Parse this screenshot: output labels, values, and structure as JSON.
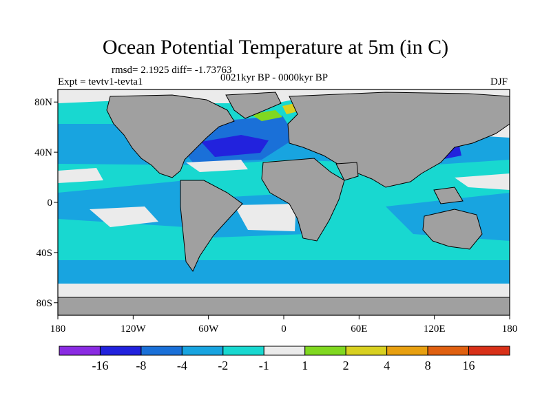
{
  "title": "Ocean Potential Temperature at 5m (in C)",
  "stats": "rmsd= 2.1925 diff= -1.73763",
  "expt": "Expt = tevtv1-tevta1",
  "period": "0021kyr BP - 0000kyr BP",
  "season": "DJF",
  "lat_ticks": [
    "80N",
    "40N",
    "0",
    "40S",
    "80S"
  ],
  "lon_ticks": [
    "180",
    "120W",
    "60W",
    "0",
    "60E",
    "120E",
    "180"
  ],
  "colorbar": {
    "colors": [
      "#8a2be2",
      "#2222dd",
      "#1a70d8",
      "#18a4e0",
      "#18d8d0",
      "#ebebeb",
      "#80d820",
      "#d8d020",
      "#e8a010",
      "#e06010",
      "#d83018"
    ],
    "labels": [
      "-16",
      "-8",
      "-4",
      "-2",
      "-1",
      "1",
      "2",
      "4",
      "8",
      "16"
    ]
  },
  "chart_data": {
    "type": "heatmap",
    "title": "Ocean Potential Temperature at 5m (in C)",
    "variable": "Ocean Potential Temperature at 5m",
    "units": "C",
    "experiment": "tevtv1-tevta1",
    "period": "0021kyr BP - 0000kyr BP",
    "season": "DJF",
    "rmsd": 2.1925,
    "diff": -1.73763,
    "x_range": [
      -180,
      180
    ],
    "y_range": [
      -90,
      90
    ],
    "contour_levels": [
      -16,
      -8,
      -4,
      -2,
      -1,
      1,
      2,
      4,
      8,
      16
    ],
    "regions": [
      {
        "name": "global-ocean-background",
        "value_class": "-2 to -1"
      },
      {
        "name": "north-atlantic-cold-core",
        "value_class": "-16 to -8"
      },
      {
        "name": "atlantic-band",
        "value_class": "-8 to -4"
      },
      {
        "name": "pacific-band",
        "value_class": "-4 to -2"
      },
      {
        "name": "southern-ocean-band",
        "value_class": "-4 to -2"
      },
      {
        "name": "near-zero-patches",
        "value_class": "-1 to 1"
      },
      {
        "name": "greenland-sea-warm-patch",
        "value_class": "1 to 2"
      },
      {
        "name": "norwegian-sea-warm-patch",
        "value_class": "2 to 4"
      }
    ]
  }
}
